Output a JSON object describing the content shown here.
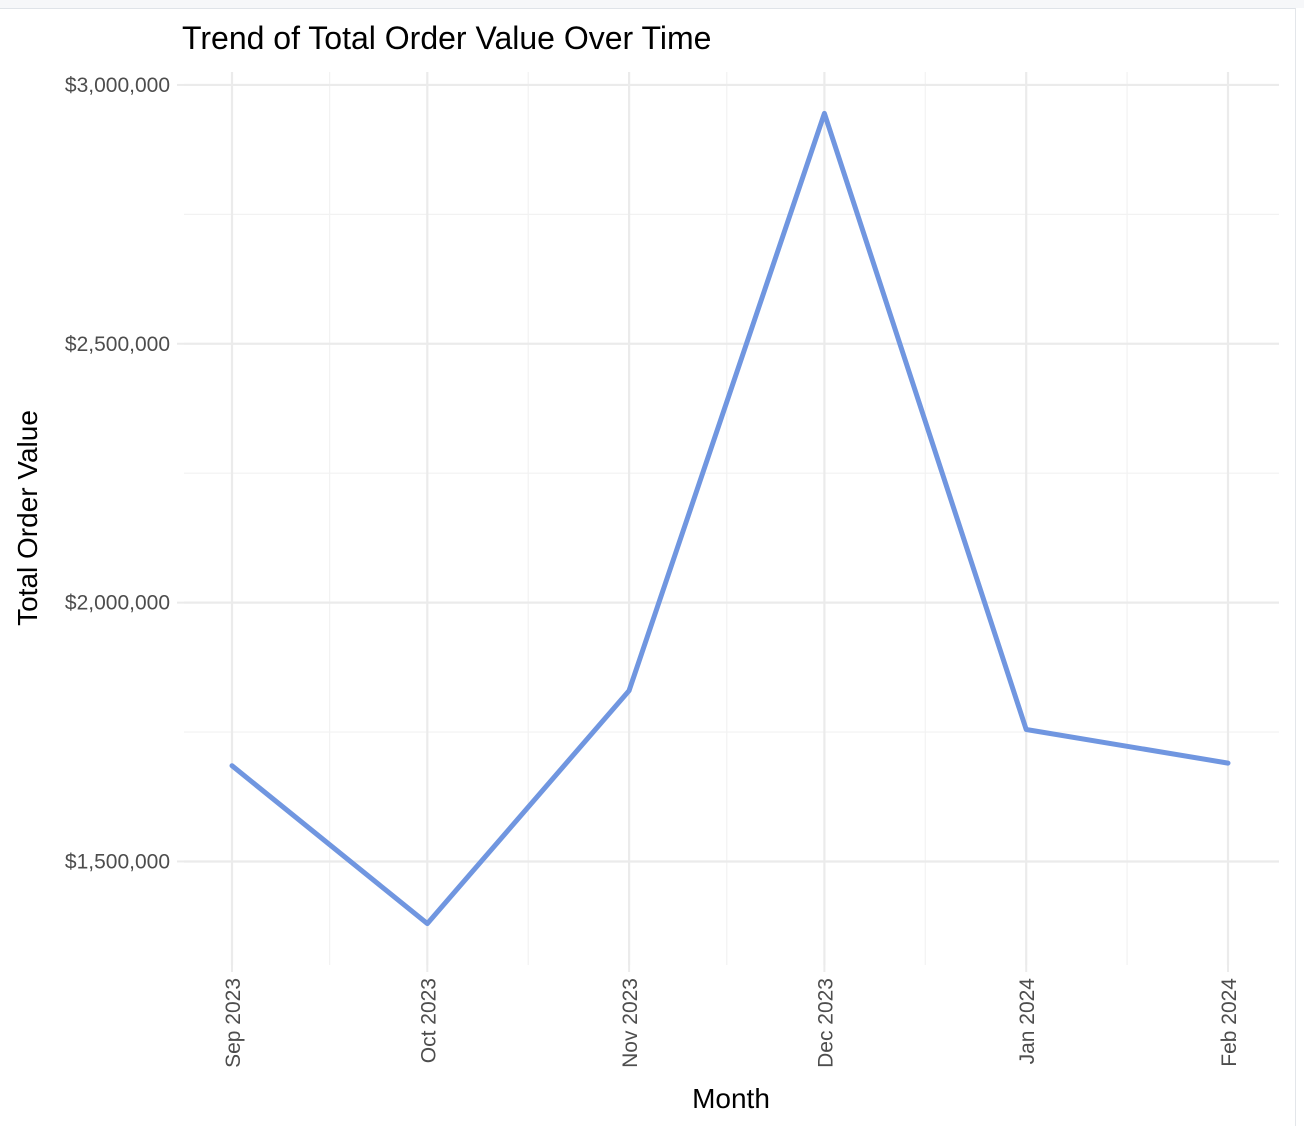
{
  "chart_data": {
    "type": "line",
    "title": "Trend of Total Order Value Over Time",
    "xlabel": "Month",
    "ylabel": "Total Order Value",
    "x": [
      "2023-09-01",
      "2023-10-01",
      "2023-11-01",
      "2023-12-01",
      "2024-01-01",
      "2024-02-01"
    ],
    "x_tick_labels": [
      "Sep 2023",
      "Oct 2023",
      "Nov 2023",
      "Dec 2023",
      "Jan 2024",
      "Feb 2024"
    ],
    "series": [
      {
        "values": [
          1685000,
          1380000,
          1830000,
          2945000,
          1755000,
          1690000
        ],
        "color": "#7096e0"
      }
    ],
    "y_ticks": [
      1500000,
      2000000,
      2500000,
      3000000
    ],
    "y_tick_labels": [
      "$1,500,000",
      "$2,000,000",
      "$2,500,000",
      "$3,000,000"
    ],
    "ylim": [
      1300000,
      3025000
    ],
    "grid": true,
    "legend": "none"
  }
}
